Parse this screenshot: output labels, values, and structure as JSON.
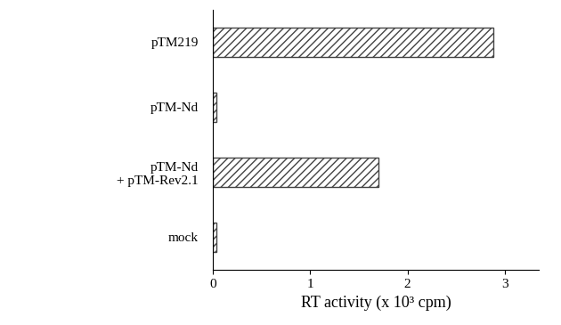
{
  "chart_data": {
    "type": "bar",
    "orientation": "horizontal",
    "categories": [
      "pTM219",
      "pTM-Nd",
      "pTM-Nd\n+ pTM-Rev2.1",
      "mock"
    ],
    "values": [
      2.88,
      0.03,
      1.7,
      0.03
    ],
    "color": "#444444",
    "x_label": "RT activity (x 10³ cpm)",
    "xlim": [
      0,
      3.35
    ],
    "xticks": [
      0,
      1,
      2,
      3
    ],
    "grid": false
  }
}
